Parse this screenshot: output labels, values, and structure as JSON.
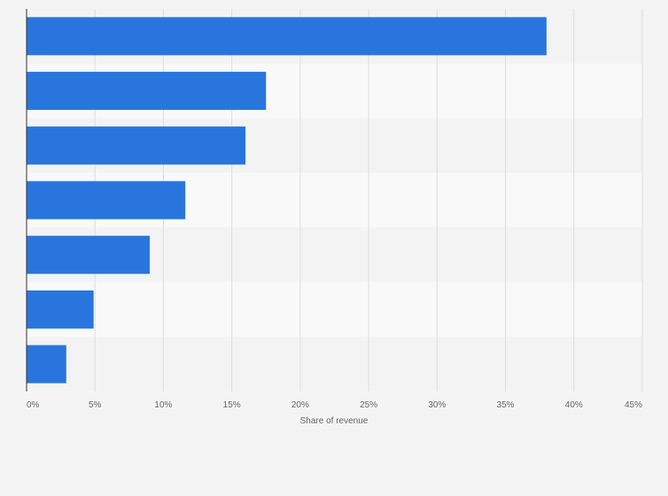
{
  "chart_data": {
    "type": "bar",
    "orientation": "horizontal",
    "categories": [
      "",
      "",
      "",
      "",
      "",
      "",
      ""
    ],
    "values": [
      38,
      17.5,
      16,
      11.6,
      9,
      4.9,
      2.9
    ],
    "xlabel": "Share of revenue",
    "ylabel": "",
    "xlim": [
      0,
      45
    ],
    "xticks": [
      "0%",
      "5%",
      "10%",
      "15%",
      "20%",
      "25%",
      "30%",
      "35%",
      "40%",
      "45%"
    ],
    "grid": true,
    "colors": {
      "bar": "#2876dd",
      "background": "#f4f4f4",
      "band_light": "#f9f9f9",
      "band_dark": "#f3f3f3",
      "gridline": "#dddddd",
      "axis": "#333333",
      "tick_text": "#666666"
    }
  }
}
